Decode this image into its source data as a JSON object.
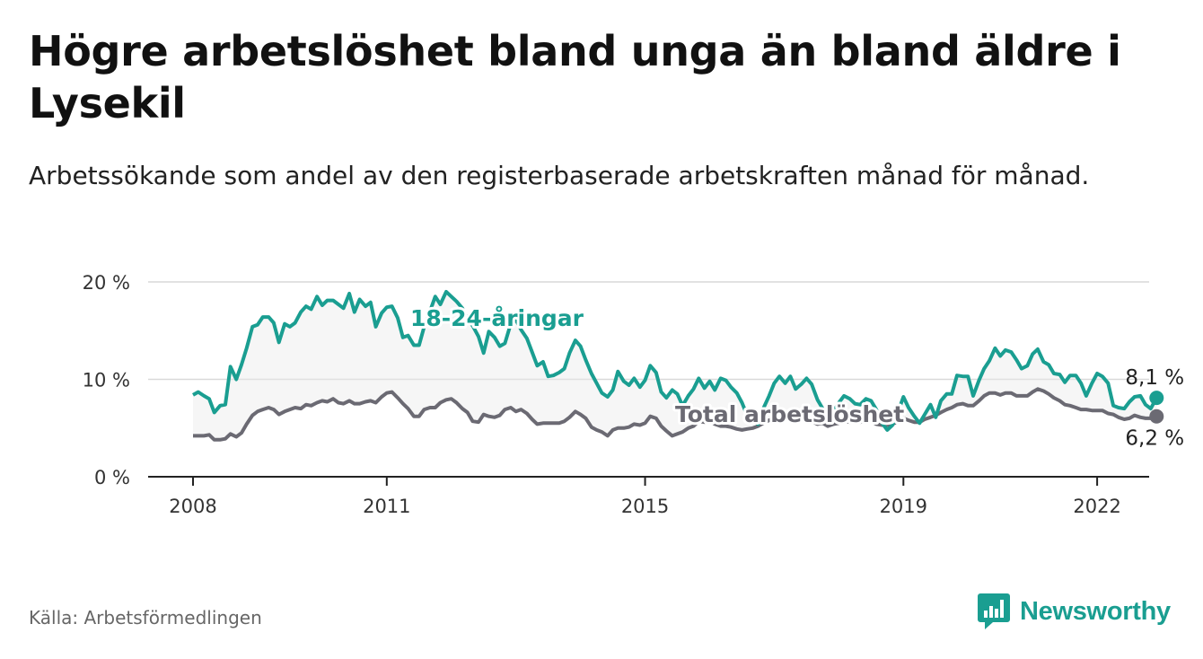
{
  "header": {
    "title": "Högre arbetslöshet bland unga än bland äldre i Lysekil",
    "subtitle": "Arbetssökande som andel av den registerbaserade arbetskraften månad för månad."
  },
  "footer": {
    "source": "Källa: Arbetsförmedlingen",
    "brand": "Newsworthy"
  },
  "colors": {
    "youth": "#1a9e91",
    "total": "#6b6a73",
    "area": "#ececec",
    "grid": "#d9d9d9",
    "axis": "#222222"
  },
  "chart_data": {
    "type": "line",
    "title": "Högre arbetslöshet bland unga än bland äldre i Lysekil",
    "xlabel": "",
    "ylabel": "",
    "xlim": [
      2008.0,
      2023.5
    ],
    "ylim": [
      0,
      20
    ],
    "x_ticks": [
      2008,
      2011,
      2015,
      2019,
      2022
    ],
    "y_ticks": [
      0,
      10,
      20
    ],
    "y_tick_labels": [
      "0 %",
      "10 %",
      "20 %"
    ],
    "grid": "horizontal",
    "series": [
      {
        "name": "18-24-åringar",
        "key": "youth",
        "end_label": "8,1 %",
        "x": [
          2008.0,
          2008.08,
          2008.17,
          2008.25,
          2008.33,
          2008.42,
          2008.5,
          2008.58,
          2008.67,
          2008.75,
          2008.83,
          2008.92,
          2009.0,
          2009.08,
          2009.17,
          2009.25,
          2009.33,
          2009.42,
          2009.5,
          2009.58,
          2009.67,
          2009.75,
          2009.83,
          2009.92,
          2010.0,
          2010.08,
          2010.17,
          2010.25,
          2010.33,
          2010.42,
          2010.5,
          2010.58,
          2010.67,
          2010.75,
          2010.83,
          2010.92,
          2011.0,
          2011.08,
          2011.17,
          2011.25,
          2011.33,
          2011.42,
          2011.5,
          2011.58,
          2011.67,
          2011.75,
          2011.83,
          2011.92,
          2012.0,
          2012.08,
          2012.17,
          2012.25,
          2012.33,
          2012.42,
          2012.5,
          2012.58,
          2012.67,
          2012.75,
          2012.83,
          2012.92,
          2013.0,
          2013.08,
          2013.17,
          2013.25,
          2013.33,
          2013.42,
          2013.5,
          2013.58,
          2013.67,
          2013.75,
          2013.83,
          2013.92,
          2014.0,
          2014.08,
          2014.17,
          2014.25,
          2014.33,
          2014.42,
          2014.5,
          2014.58,
          2014.67,
          2014.75,
          2014.83,
          2014.92,
          2015.0,
          2015.08,
          2015.17,
          2015.25,
          2015.33,
          2015.42,
          2015.5,
          2015.58,
          2015.67,
          2015.75,
          2015.83,
          2015.92,
          2016.0,
          2016.08,
          2016.17,
          2016.25,
          2016.33,
          2016.42,
          2016.5,
          2016.58,
          2016.67,
          2016.75,
          2016.83,
          2016.92,
          2017.0,
          2017.08,
          2017.17,
          2017.25,
          2017.33,
          2017.42,
          2017.5,
          2017.58,
          2017.67,
          2017.75,
          2017.83,
          2017.92,
          2018.0,
          2018.08,
          2018.17,
          2018.25,
          2018.33,
          2018.42,
          2018.5,
          2018.58,
          2018.67,
          2018.75,
          2018.83,
          2018.92,
          2019.0,
          2019.08,
          2019.17,
          2019.25,
          2019.33,
          2019.42,
          2019.5,
          2019.58,
          2019.67,
          2019.75,
          2019.83,
          2019.92,
          2020.0,
          2020.08,
          2020.17,
          2020.25,
          2020.33,
          2020.42,
          2020.5,
          2020.58,
          2020.67,
          2020.75,
          2020.83,
          2020.92,
          2021.0,
          2021.08,
          2021.17,
          2021.25,
          2021.33,
          2021.42,
          2021.5,
          2021.58,
          2021.67,
          2021.75,
          2021.83,
          2021.92,
          2022.0,
          2022.08,
          2022.17,
          2022.25,
          2022.33,
          2022.42,
          2022.5,
          2022.58,
          2022.67,
          2022.75,
          2022.83,
          2022.92
        ],
        "values": [
          8.4,
          8.7,
          8.3,
          8.0,
          6.6,
          7.3,
          7.4,
          11.3,
          10.0,
          11.5,
          13.2,
          15.4,
          15.6,
          16.4,
          16.4,
          15.8,
          13.8,
          15.7,
          15.4,
          15.8,
          16.9,
          17.5,
          17.2,
          18.5,
          17.6,
          18.1,
          18.1,
          17.7,
          17.3,
          18.8,
          16.9,
          18.2,
          17.5,
          17.9,
          15.4,
          16.8,
          17.4,
          17.5,
          16.3,
          14.3,
          14.5,
          13.5,
          13.5,
          15.4,
          17.0,
          18.5,
          17.7,
          19.0,
          18.5,
          18.0,
          17.3,
          16.1,
          15.5,
          14.4,
          12.7,
          14.9,
          14.3,
          13.4,
          13.7,
          15.7,
          16.1,
          15.1,
          14.2,
          12.8,
          11.4,
          11.8,
          10.3,
          10.4,
          10.7,
          11.1,
          12.7,
          14.0,
          13.4,
          12.0,
          10.6,
          9.6,
          8.6,
          8.2,
          8.9,
          10.8,
          9.8,
          9.4,
          10.1,
          9.2,
          9.9,
          11.4,
          10.7,
          8.7,
          8.1,
          8.9,
          8.5,
          7.3,
          8.3,
          9.0,
          10.1,
          9.1,
          9.8,
          8.9,
          10.1,
          9.9,
          9.2,
          8.6,
          7.6,
          6.3,
          5.8,
          5.4,
          7.0,
          8.3,
          9.6,
          10.3,
          9.6,
          10.3,
          9.0,
          9.5,
          10.1,
          9.5,
          7.9,
          7.0,
          6.3,
          6.7,
          7.6,
          8.3,
          8.0,
          7.5,
          7.4,
          8.0,
          7.8,
          6.9,
          5.5,
          4.8,
          5.3,
          6.7,
          8.2,
          7.1,
          6.2,
          5.5,
          6.4,
          7.4,
          6.1,
          7.8,
          8.5,
          8.5,
          10.4,
          10.3,
          10.3,
          8.3,
          9.9,
          11.1,
          11.9,
          13.2,
          12.4,
          13.0,
          12.8,
          12.0,
          11.1,
          11.4,
          12.6,
          13.1,
          11.8,
          11.5,
          10.6,
          10.5,
          9.7,
          10.4,
          10.4,
          9.6,
          8.3,
          9.6,
          10.6,
          10.3,
          9.6,
          7.3,
          7.1,
          7.0,
          7.7,
          8.2,
          8.3,
          7.4,
          7.0,
          8.1
        ]
      },
      {
        "name": "Total arbetslöshet",
        "key": "total",
        "end_label": "6,2 %",
        "x": [
          2008.0,
          2008.08,
          2008.17,
          2008.25,
          2008.33,
          2008.42,
          2008.5,
          2008.58,
          2008.67,
          2008.75,
          2008.83,
          2008.92,
          2009.0,
          2009.08,
          2009.17,
          2009.25,
          2009.33,
          2009.42,
          2009.5,
          2009.58,
          2009.67,
          2009.75,
          2009.83,
          2009.92,
          2010.0,
          2010.08,
          2010.17,
          2010.25,
          2010.33,
          2010.42,
          2010.5,
          2010.58,
          2010.67,
          2010.75,
          2010.83,
          2010.92,
          2011.0,
          2011.08,
          2011.17,
          2011.25,
          2011.33,
          2011.42,
          2011.5,
          2011.58,
          2011.67,
          2011.75,
          2011.83,
          2011.92,
          2012.0,
          2012.08,
          2012.17,
          2012.25,
          2012.33,
          2012.42,
          2012.5,
          2012.58,
          2012.67,
          2012.75,
          2012.83,
          2012.92,
          2013.0,
          2013.08,
          2013.17,
          2013.25,
          2013.33,
          2013.42,
          2013.5,
          2013.58,
          2013.67,
          2013.75,
          2013.83,
          2013.92,
          2014.0,
          2014.08,
          2014.17,
          2014.25,
          2014.33,
          2014.42,
          2014.5,
          2014.58,
          2014.67,
          2014.75,
          2014.83,
          2014.92,
          2015.0,
          2015.08,
          2015.17,
          2015.25,
          2015.33,
          2015.42,
          2015.5,
          2015.58,
          2015.67,
          2015.75,
          2015.83,
          2015.92,
          2016.0,
          2016.08,
          2016.17,
          2016.25,
          2016.33,
          2016.42,
          2016.5,
          2016.58,
          2016.67,
          2016.75,
          2016.83,
          2016.92,
          2017.0,
          2017.08,
          2017.17,
          2017.25,
          2017.33,
          2017.42,
          2017.5,
          2017.58,
          2017.67,
          2017.75,
          2017.83,
          2017.92,
          2018.0,
          2018.08,
          2018.17,
          2018.25,
          2018.33,
          2018.42,
          2018.5,
          2018.58,
          2018.67,
          2018.75,
          2018.83,
          2018.92,
          2019.0,
          2019.08,
          2019.17,
          2019.25,
          2019.33,
          2019.42,
          2019.5,
          2019.58,
          2019.67,
          2019.75,
          2019.83,
          2019.92,
          2020.0,
          2020.08,
          2020.17,
          2020.25,
          2020.33,
          2020.42,
          2020.5,
          2020.58,
          2020.67,
          2020.75,
          2020.83,
          2020.92,
          2021.0,
          2021.08,
          2021.17,
          2021.25,
          2021.33,
          2021.42,
          2021.5,
          2021.58,
          2021.67,
          2021.75,
          2021.83,
          2021.92,
          2022.0,
          2022.08,
          2022.17,
          2022.25,
          2022.33,
          2022.42,
          2022.5,
          2022.58,
          2022.67,
          2022.75,
          2022.83,
          2022.92
        ],
        "values": [
          4.2,
          4.2,
          4.2,
          4.3,
          3.8,
          3.8,
          3.9,
          4.4,
          4.1,
          4.5,
          5.4,
          6.3,
          6.7,
          6.9,
          7.1,
          6.9,
          6.4,
          6.7,
          6.9,
          7.1,
          7.0,
          7.4,
          7.3,
          7.6,
          7.8,
          7.7,
          8.0,
          7.6,
          7.5,
          7.8,
          7.5,
          7.5,
          7.7,
          7.8,
          7.6,
          8.2,
          8.6,
          8.7,
          8.1,
          7.5,
          7.0,
          6.2,
          6.2,
          6.9,
          7.1,
          7.1,
          7.6,
          7.9,
          8.0,
          7.6,
          7.0,
          6.6,
          5.7,
          5.6,
          6.4,
          6.2,
          6.1,
          6.3,
          6.9,
          7.1,
          6.7,
          6.9,
          6.5,
          5.9,
          5.4,
          5.5,
          5.5,
          5.5,
          5.5,
          5.7,
          6.1,
          6.7,
          6.4,
          6.0,
          5.1,
          4.8,
          4.6,
          4.2,
          4.8,
          5.0,
          5.0,
          5.1,
          5.4,
          5.3,
          5.5,
          6.2,
          6.0,
          5.2,
          4.7,
          4.2,
          4.4,
          4.6,
          5.0,
          5.2,
          5.7,
          5.6,
          5.8,
          5.4,
          5.2,
          5.2,
          5.1,
          4.9,
          4.8,
          4.9,
          5.0,
          5.2,
          5.5,
          5.8,
          6.0,
          6.1,
          5.9,
          6.0,
          5.7,
          5.8,
          5.9,
          5.7,
          5.4,
          5.5,
          5.2,
          5.4,
          5.5,
          5.7,
          5.6,
          5.6,
          5.6,
          5.7,
          5.7,
          5.4,
          5.3,
          5.3,
          5.4,
          5.7,
          6.0,
          5.8,
          5.6,
          5.6,
          5.9,
          6.1,
          6.3,
          6.6,
          6.9,
          7.1,
          7.4,
          7.5,
          7.3,
          7.3,
          7.8,
          8.3,
          8.6,
          8.6,
          8.4,
          8.6,
          8.6,
          8.3,
          8.3,
          8.3,
          8.7,
          9.0,
          8.8,
          8.5,
          8.1,
          7.8,
          7.4,
          7.3,
          7.1,
          6.9,
          6.9,
          6.8,
          6.8,
          6.8,
          6.5,
          6.4,
          6.1,
          5.9,
          6.0,
          6.3,
          6.1,
          6.0,
          6.0,
          6.2
        ]
      }
    ],
    "annotations": [
      {
        "text": "18-24-åringar",
        "series": "youth"
      },
      {
        "text": "Total arbetslöshet",
        "series": "total"
      }
    ]
  }
}
